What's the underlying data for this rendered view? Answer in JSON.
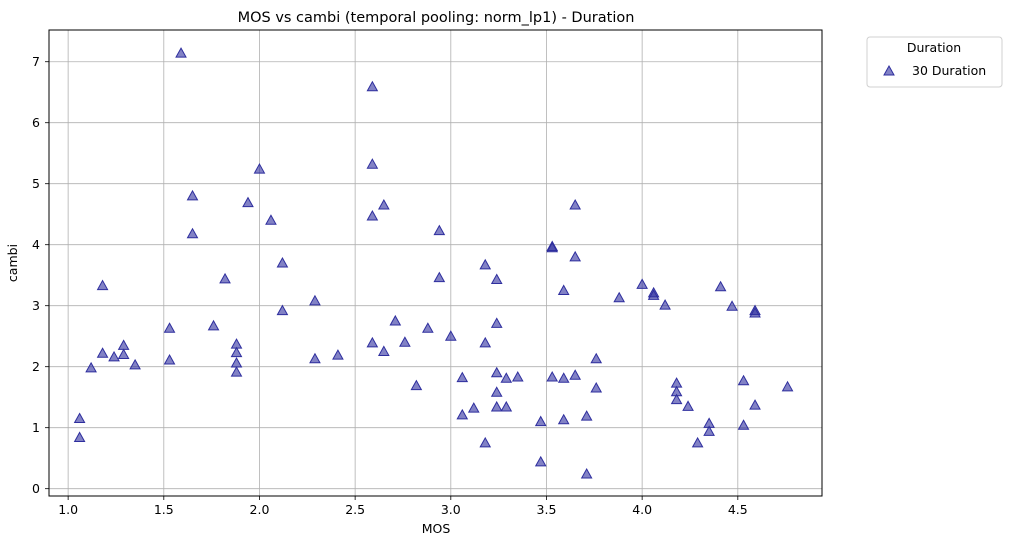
{
  "chart_data": {
    "type": "scatter",
    "title": "MOS vs cambi (temporal pooling: norm_lp1) - Duration",
    "xlabel": "MOS",
    "ylabel": "cambi",
    "xlim": [
      0.9,
      4.94
    ],
    "ylim": [
      -0.12,
      7.52
    ],
    "xticks": [
      1.0,
      1.5,
      2.0,
      2.5,
      3.0,
      3.5,
      4.0,
      4.5
    ],
    "xtick_labels": [
      "1.0",
      "1.5",
      "2.0",
      "2.5",
      "3.0",
      "3.5",
      "4.0",
      "4.5"
    ],
    "yticks": [
      0,
      1,
      2,
      3,
      4,
      5,
      6,
      7
    ],
    "ytick_labels": [
      "0",
      "1",
      "2",
      "3",
      "4",
      "5",
      "6",
      "7"
    ],
    "grid": true,
    "legend": {
      "title": "Duration",
      "placement": "outside-top-right",
      "entries": [
        "30 Duration"
      ]
    },
    "series": [
      {
        "name": "30 Duration",
        "marker": "triangle",
        "color": "#2e2e9e",
        "points": [
          [
            1.06,
            1.15
          ],
          [
            1.06,
            0.84
          ],
          [
            1.12,
            1.98
          ],
          [
            1.18,
            3.33
          ],
          [
            1.18,
            2.22
          ],
          [
            1.24,
            2.16
          ],
          [
            1.29,
            2.35
          ],
          [
            1.29,
            2.2
          ],
          [
            1.35,
            2.03
          ],
          [
            1.53,
            2.63
          ],
          [
            1.53,
            2.11
          ],
          [
            1.59,
            7.14
          ],
          [
            1.65,
            4.8
          ],
          [
            1.65,
            4.18
          ],
          [
            1.76,
            2.67
          ],
          [
            1.82,
            3.44
          ],
          [
            1.88,
            2.37
          ],
          [
            1.88,
            2.23
          ],
          [
            1.88,
            2.06
          ],
          [
            1.88,
            1.91
          ],
          [
            1.94,
            4.69
          ],
          [
            2.0,
            5.24
          ],
          [
            2.06,
            4.4
          ],
          [
            2.12,
            3.7
          ],
          [
            2.12,
            2.92
          ],
          [
            2.29,
            3.08
          ],
          [
            2.29,
            2.13
          ],
          [
            2.41,
            2.19
          ],
          [
            2.59,
            6.59
          ],
          [
            2.59,
            5.32
          ],
          [
            2.59,
            4.47
          ],
          [
            2.59,
            2.39
          ],
          [
            2.65,
            4.65
          ],
          [
            2.65,
            2.25
          ],
          [
            2.71,
            2.75
          ],
          [
            2.76,
            2.4
          ],
          [
            2.82,
            1.69
          ],
          [
            2.88,
            2.63
          ],
          [
            2.94,
            4.23
          ],
          [
            2.94,
            3.46
          ],
          [
            3.0,
            2.5
          ],
          [
            3.06,
            1.82
          ],
          [
            3.06,
            1.21
          ],
          [
            3.12,
            1.32
          ],
          [
            3.18,
            3.67
          ],
          [
            3.18,
            2.39
          ],
          [
            3.18,
            0.75
          ],
          [
            3.24,
            3.43
          ],
          [
            3.24,
            2.71
          ],
          [
            3.24,
            1.9
          ],
          [
            3.24,
            1.58
          ],
          [
            3.24,
            1.34
          ],
          [
            3.29,
            1.81
          ],
          [
            3.29,
            1.34
          ],
          [
            3.35,
            1.83
          ],
          [
            3.47,
            1.1
          ],
          [
            3.47,
            0.44
          ],
          [
            3.53,
            3.97
          ],
          [
            3.53,
            3.95
          ],
          [
            3.53,
            1.83
          ],
          [
            3.59,
            3.25
          ],
          [
            3.59,
            1.81
          ],
          [
            3.59,
            1.13
          ],
          [
            3.65,
            4.65
          ],
          [
            3.65,
            3.8
          ],
          [
            3.65,
            1.86
          ],
          [
            3.71,
            1.19
          ],
          [
            3.71,
            0.24
          ],
          [
            3.76,
            2.13
          ],
          [
            3.76,
            1.65
          ],
          [
            3.88,
            3.13
          ],
          [
            4.0,
            3.35
          ],
          [
            4.06,
            3.21
          ],
          [
            4.06,
            3.17
          ],
          [
            4.12,
            3.01
          ],
          [
            4.18,
            1.73
          ],
          [
            4.18,
            1.59
          ],
          [
            4.18,
            1.46
          ],
          [
            4.24,
            1.35
          ],
          [
            4.29,
            0.75
          ],
          [
            4.35,
            1.07
          ],
          [
            4.35,
            0.94
          ],
          [
            4.41,
            3.31
          ],
          [
            4.47,
            2.99
          ],
          [
            4.53,
            1.77
          ],
          [
            4.53,
            1.04
          ],
          [
            4.59,
            2.92
          ],
          [
            4.59,
            2.88
          ],
          [
            4.59,
            1.37
          ],
          [
            4.76,
            1.67
          ]
        ]
      }
    ]
  }
}
